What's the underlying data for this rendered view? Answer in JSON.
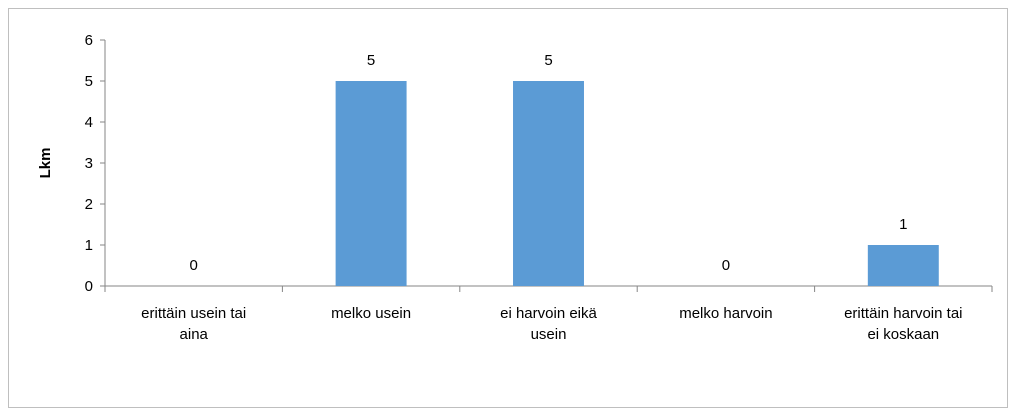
{
  "chart_data": {
    "type": "bar",
    "ylabel": "Lkm",
    "ylim": [
      0,
      6
    ],
    "yticks": [
      0,
      1,
      2,
      3,
      4,
      5,
      6
    ],
    "grid": false,
    "legend": "none",
    "categories": [
      [
        "erittäin usein tai",
        "aina"
      ],
      [
        "melko usein"
      ],
      [
        "ei harvoin eikä",
        "usein"
      ],
      [
        "melko harvoin"
      ],
      [
        "erittäin harvoin tai",
        "ei koskaan"
      ]
    ],
    "values": [
      0,
      5,
      5,
      0,
      1
    ],
    "data_labels": [
      "0",
      "5",
      "5",
      "0",
      "1"
    ],
    "colors": {
      "bar": "#5b9bd5",
      "axis": "#868686",
      "frame": "#bfbfbf"
    }
  }
}
